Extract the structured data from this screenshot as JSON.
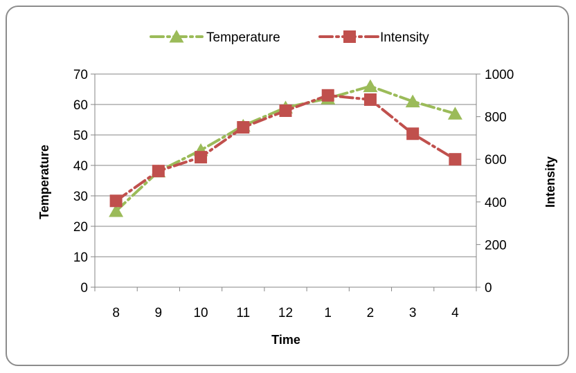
{
  "chart_data": {
    "type": "line",
    "x": [
      "8",
      "9",
      "10",
      "11",
      "12",
      "1",
      "2",
      "3",
      "4"
    ],
    "xlabel": "Time",
    "ylabel": "Temperature",
    "y2label": "Intensity",
    "ylim": [
      0,
      70
    ],
    "y2lim": [
      0,
      1000
    ],
    "yticks": [
      "0",
      "10",
      "20",
      "30",
      "40",
      "50",
      "60",
      "70"
    ],
    "y2ticks": [
      "0",
      "200",
      "400",
      "600",
      "800",
      "1000"
    ],
    "grid": true,
    "legend_position": "top",
    "series": [
      {
        "name": "Temperature",
        "axis": "left",
        "values": [
          25,
          38,
          45,
          53,
          59,
          62,
          66,
          61,
          57
        ],
        "color": "#9BBB59",
        "marker": "triangle",
        "line_style": "dash-dot"
      },
      {
        "name": "Intensity",
        "axis": "right",
        "values": [
          405,
          545,
          610,
          750,
          828,
          900,
          880,
          720,
          600
        ],
        "color": "#C0504D",
        "marker": "square",
        "line_style": "dash-dot"
      }
    ]
  }
}
